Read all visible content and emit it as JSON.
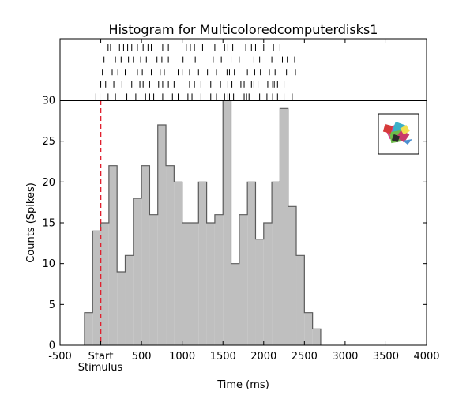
{
  "chart_data": {
    "type": "bar",
    "title": "Histogram for Multicoloredcomputerdisks1",
    "xlabel": "Time (ms)",
    "ylabel": "Counts (Spikes)",
    "xlim": [
      -500,
      4000
    ],
    "ylim": [
      0,
      30
    ],
    "x_ticks": [
      {
        "value": -500,
        "label": "-500"
      },
      {
        "value": 0,
        "label": "Start"
      },
      {
        "value": 500,
        "label": "500"
      },
      {
        "value": 1000,
        "label": "1000"
      },
      {
        "value": 1500,
        "label": "1500"
      },
      {
        "value": 2000,
        "label": "2000"
      },
      {
        "value": 2500,
        "label": "2500"
      },
      {
        "value": 3000,
        "label": "3000"
      },
      {
        "value": 3500,
        "label": "3500"
      },
      {
        "value": 4000,
        "label": "4000"
      }
    ],
    "y_ticks": [
      0,
      5,
      10,
      15,
      20,
      25,
      30
    ],
    "stimulus_label": "Stimulus",
    "stimulus_onset": 0,
    "bin_width": 100,
    "bins": [
      {
        "start": -200,
        "count": 4
      },
      {
        "start": -100,
        "count": 14
      },
      {
        "start": 0,
        "count": 15
      },
      {
        "start": 100,
        "count": 22
      },
      {
        "start": 200,
        "count": 9
      },
      {
        "start": 300,
        "count": 11
      },
      {
        "start": 400,
        "count": 18
      },
      {
        "start": 500,
        "count": 22
      },
      {
        "start": 600,
        "count": 16
      },
      {
        "start": 700,
        "count": 27
      },
      {
        "start": 800,
        "count": 22
      },
      {
        "start": 900,
        "count": 20
      },
      {
        "start": 1000,
        "count": 15
      },
      {
        "start": 1100,
        "count": 15
      },
      {
        "start": 1200,
        "count": 20
      },
      {
        "start": 1300,
        "count": 15
      },
      {
        "start": 1400,
        "count": 16
      },
      {
        "start": 1500,
        "count": 30
      },
      {
        "start": 1600,
        "count": 10
      },
      {
        "start": 1700,
        "count": 16
      },
      {
        "start": 1800,
        "count": 20
      },
      {
        "start": 1900,
        "count": 13
      },
      {
        "start": 2000,
        "count": 15
      },
      {
        "start": 2100,
        "count": 20
      },
      {
        "start": 2200,
        "count": 29
      },
      {
        "start": 2300,
        "count": 17
      },
      {
        "start": 2400,
        "count": 11
      },
      {
        "start": 2500,
        "count": 4
      },
      {
        "start": 2600,
        "count": 2
      }
    ],
    "raster_trials": [
      [
        90,
        120,
        230,
        280,
        330,
        380,
        450,
        520,
        580,
        620,
        760,
        830,
        1050,
        1100,
        1150,
        1250,
        1400,
        1520,
        1560,
        1620,
        1780,
        1850,
        1900,
        2000,
        2120,
        2200
      ],
      [
        40,
        180,
        250,
        340,
        400,
        490,
        560,
        690,
        750,
        830,
        1010,
        1160,
        1380,
        1480,
        1600,
        1700,
        1880,
        1950,
        2100,
        2230,
        2290,
        2380
      ],
      [
        20,
        140,
        210,
        300,
        450,
        510,
        620,
        730,
        780,
        950,
        1000,
        1090,
        1200,
        1310,
        1420,
        1550,
        1580,
        1640,
        1800,
        1890,
        1960,
        2070,
        2140,
        2280,
        2390
      ],
      [
        0,
        60,
        160,
        260,
        380,
        480,
        520,
        600,
        710,
        760,
        830,
        900,
        1090,
        1150,
        1230,
        1350,
        1470,
        1560,
        1610,
        1720,
        1760,
        1850,
        1880,
        1930,
        2050,
        2110,
        2130,
        2170,
        2250
      ],
      [
        -60,
        -10,
        90,
        180,
        320,
        430,
        550,
        600,
        650,
        760,
        880,
        950,
        1070,
        1120,
        1230,
        1350,
        1420,
        1520,
        1560,
        1580,
        1630,
        1760,
        1790,
        1820,
        1950,
        2040,
        2110,
        2170,
        2250,
        2350
      ]
    ],
    "grid": false,
    "colors": {
      "bar_fill": "#bfbfbf",
      "bar_edge": "#5a5a5a",
      "stimulus_line": "#e0202e",
      "axis": "#000000"
    },
    "inset_image": "multicolored-computer-disks-thumbnail"
  }
}
